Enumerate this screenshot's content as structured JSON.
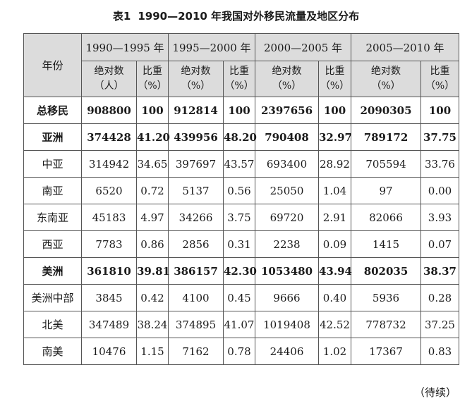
{
  "caption": {
    "number": "表1",
    "title": "1990—2010 年我国对外移民流量及地区分布"
  },
  "header": {
    "row_label": "年份",
    "periods": [
      "1990—1995 年",
      "1995—2000 年",
      "2000—2005 年",
      "2005—2010 年"
    ],
    "subcols": [
      {
        "abs": "绝对数",
        "abs_unit": "（人）",
        "share": "比重",
        "share_unit": "（%）"
      },
      {
        "abs": "绝对数",
        "abs_unit": "（%）",
        "share": "比重",
        "share_unit": "（%）"
      },
      {
        "abs": "绝对数",
        "abs_unit": "（%）",
        "share": "比重",
        "share_unit": "（%）"
      },
      {
        "abs": "绝对数",
        "abs_unit": "（%）",
        "share": "比重",
        "share_unit": "（%）"
      }
    ]
  },
  "rows": [
    {
      "label": "总移民",
      "bold": true,
      "cells": [
        "908800",
        "100",
        "912814",
        "100",
        "2397656",
        "100",
        "2090305",
        "100"
      ]
    },
    {
      "label": "亚洲",
      "bold": true,
      "cells": [
        "374428",
        "41.20",
        "439956",
        "48.20",
        "790408",
        "32.97",
        "789172",
        "37.75"
      ]
    },
    {
      "label": "中亚",
      "bold": false,
      "cells": [
        "314942",
        "34.65",
        "397697",
        "43.57",
        "693400",
        "28.92",
        "705594",
        "33.76"
      ]
    },
    {
      "label": "南亚",
      "bold": false,
      "cells": [
        "6520",
        "0.72",
        "5137",
        "0.56",
        "25050",
        "1.04",
        "97",
        "0.00"
      ]
    },
    {
      "label": "东南亚",
      "bold": false,
      "cells": [
        "45183",
        "4.97",
        "34266",
        "3.75",
        "69720",
        "2.91",
        "82066",
        "3.93"
      ]
    },
    {
      "label": "西亚",
      "bold": false,
      "cells": [
        "7783",
        "0.86",
        "2856",
        "0.31",
        "2238",
        "0.09",
        "1415",
        "0.07"
      ]
    },
    {
      "label": "美洲",
      "bold": true,
      "cells": [
        "361810",
        "39.81",
        "386157",
        "42.30",
        "1053480",
        "43.94",
        "802035",
        "38.37"
      ]
    },
    {
      "label": "美洲中部",
      "bold": false,
      "cells": [
        "3845",
        "0.42",
        "4100",
        "0.45",
        "9666",
        "0.40",
        "5936",
        "0.28"
      ]
    },
    {
      "label": "北美",
      "bold": false,
      "cells": [
        "347489",
        "38.24",
        "374895",
        "41.07",
        "1019408",
        "42.52",
        "778732",
        "37.25"
      ]
    },
    {
      "label": "南美",
      "bold": false,
      "cells": [
        "10476",
        "1.15",
        "7162",
        "0.78",
        "24406",
        "1.02",
        "17367",
        "0.83"
      ]
    }
  ],
  "continued": "（待续）"
}
